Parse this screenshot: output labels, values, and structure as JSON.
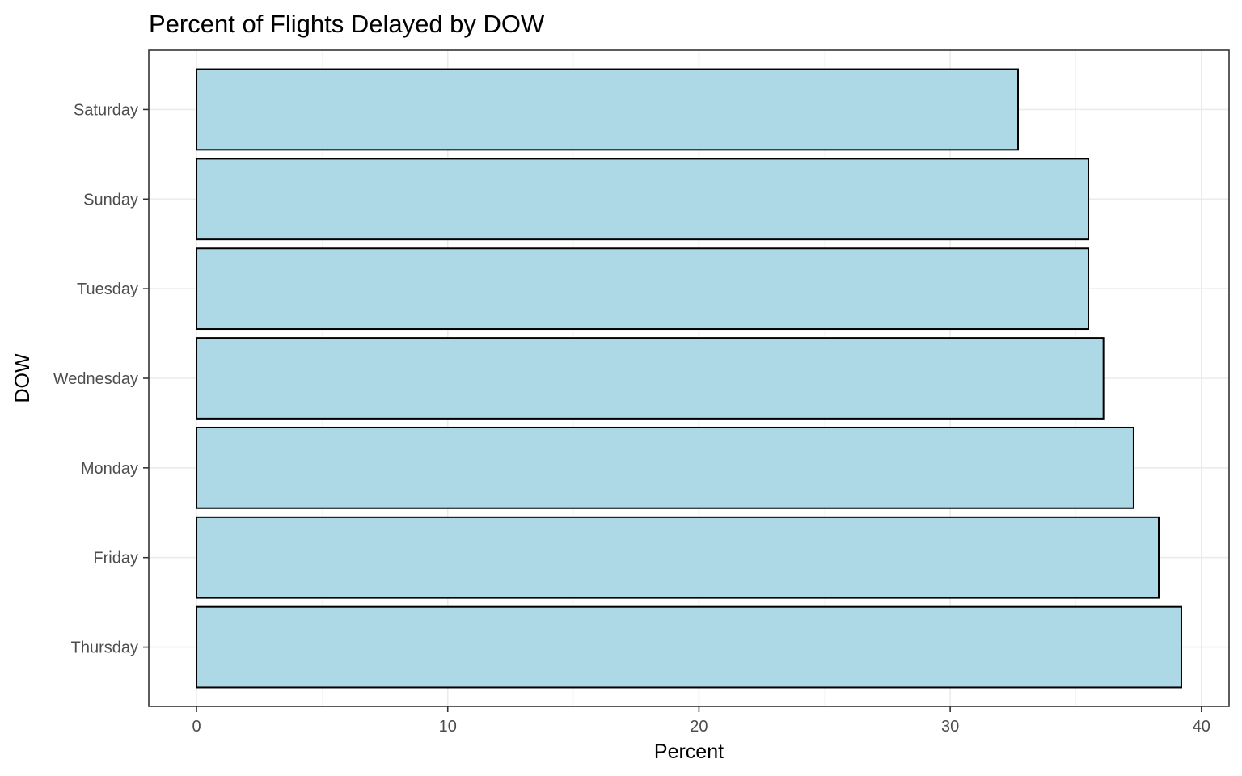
{
  "chart_data": {
    "type": "bar",
    "orientation": "horizontal",
    "title": "Percent of Flights Delayed by DOW",
    "xlabel": "Percent",
    "ylabel": "DOW",
    "categories": [
      "Saturday",
      "Sunday",
      "Tuesday",
      "Wednesday",
      "Monday",
      "Friday",
      "Thursday"
    ],
    "values": [
      32.7,
      35.5,
      35.5,
      36.1,
      37.3,
      38.3,
      39.2
    ],
    "xlim": [
      -1.9,
      41.1
    ],
    "xticks": [
      0,
      10,
      20,
      30,
      40
    ],
    "xtick_labels": [
      "0",
      "10",
      "20",
      "30",
      "40"
    ],
    "grid": true,
    "legend": "none",
    "colors": {
      "bar_fill": "#add8e6",
      "bar_outline": "#000000",
      "grid": "#ebebeb",
      "panel_border": "#333333"
    }
  }
}
